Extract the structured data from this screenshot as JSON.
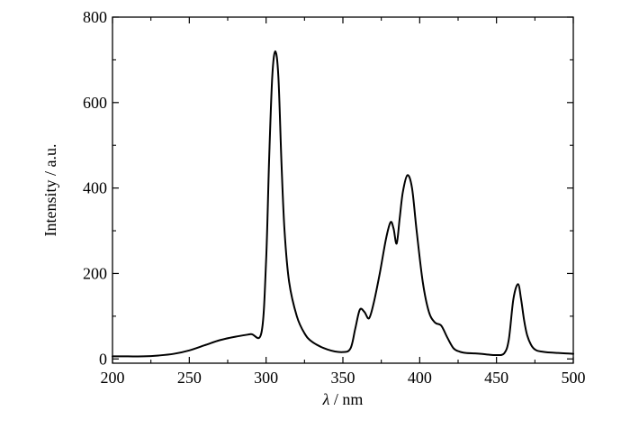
{
  "chart_data": {
    "type": "line",
    "xlabel_symbol": "λ",
    "xlabel_unit": "/ nm",
    "ylabel": "Intensity / a.u.",
    "xlim": [
      200,
      500
    ],
    "ylim": [
      -10,
      800
    ],
    "x_ticks": [
      200,
      250,
      300,
      350,
      400,
      450,
      500
    ],
    "y_ticks": [
      0,
      200,
      400,
      600,
      800
    ],
    "x_tick_labels": [
      "200",
      "250",
      "300",
      "350",
      "400",
      "450",
      "500"
    ],
    "y_tick_labels": [
      "0",
      "200",
      "400",
      "600",
      "800"
    ],
    "grid": false,
    "line_color": "#000000",
    "series": [
      {
        "x": [
          200,
          210,
          220,
          230,
          240,
          250,
          260,
          270,
          280,
          290,
          297,
          300,
          302,
          304,
          306,
          308,
          310,
          312,
          315,
          320,
          325,
          330,
          340,
          350,
          355,
          358,
          361,
          364,
          367,
          370,
          374,
          378,
          381,
          383,
          385,
          387,
          389,
          392,
          395,
          398,
          402,
          406,
          410,
          414,
          418,
          422,
          426,
          430,
          436,
          440,
          445,
          450,
          455,
          458,
          461,
          464,
          466,
          468,
          470,
          473,
          476,
          480,
          485,
          490,
          495,
          500
        ],
        "y": [
          6,
          6,
          6,
          8,
          12,
          20,
          32,
          44,
          52,
          58,
          62,
          230,
          470,
          660,
          720,
          660,
          460,
          300,
          180,
          100,
          60,
          40,
          22,
          16,
          25,
          70,
          115,
          110,
          95,
          130,
          200,
          280,
          320,
          305,
          270,
          330,
          390,
          430,
          400,
          300,
          180,
          110,
          85,
          78,
          50,
          25,
          17,
          14,
          13,
          12,
          10,
          9,
          13,
          45,
          140,
          175,
          140,
          90,
          55,
          30,
          20,
          17,
          15,
          14,
          13,
          12
        ]
      }
    ]
  }
}
